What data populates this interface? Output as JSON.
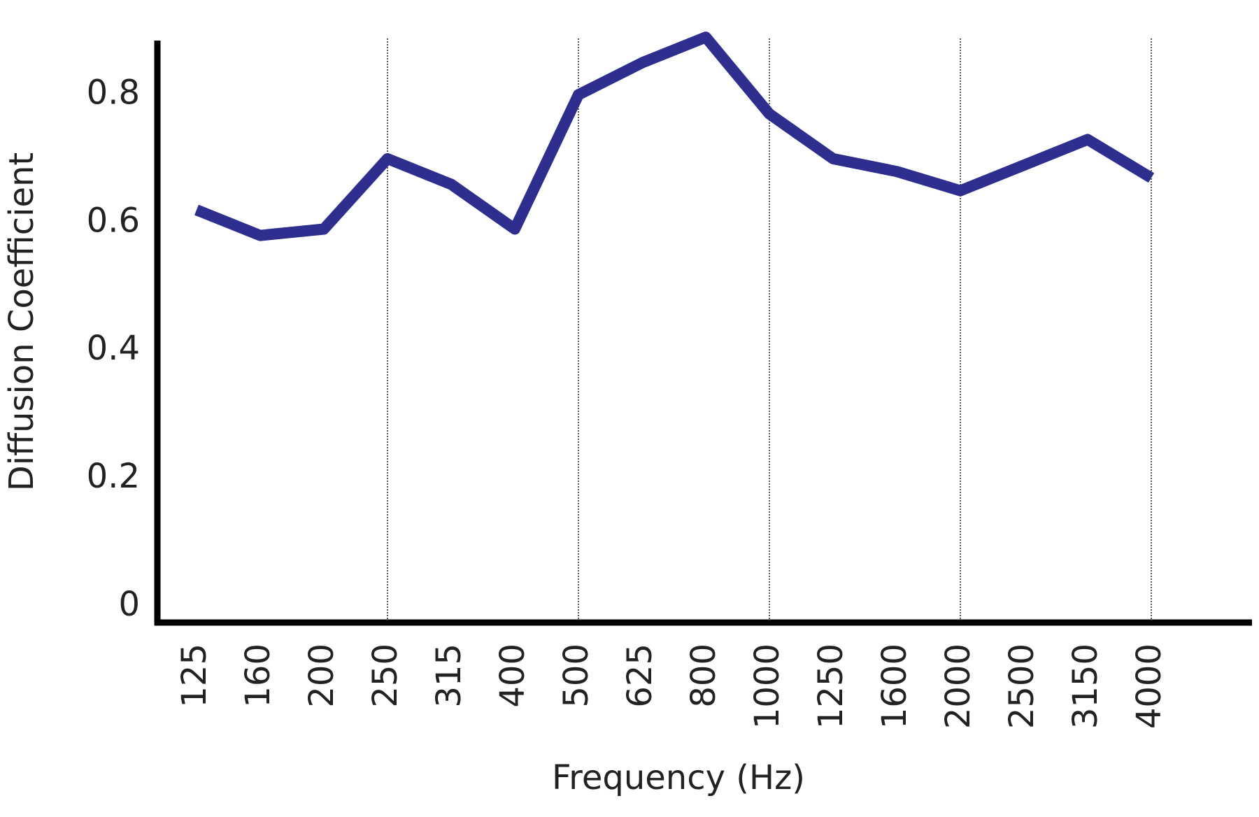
{
  "chart_data": {
    "type": "line",
    "x_label": "Frequency (Hz)",
    "y_label": "Diffusion Coefficient",
    "categories": [
      "125",
      "160",
      "200",
      "250",
      "315",
      "400",
      "500",
      "625",
      "800",
      "1000",
      "1250",
      "1600",
      "2000",
      "2500",
      "3150",
      "4000"
    ],
    "values": [
      0.62,
      0.58,
      0.59,
      0.7,
      0.66,
      0.59,
      0.8,
      0.85,
      0.89,
      0.77,
      0.7,
      0.68,
      0.65,
      0.69,
      0.73,
      0.67
    ],
    "color": "#2e2e8f",
    "ylim": [
      0,
      0.9
    ],
    "yticks": [
      0,
      0.2,
      0.4,
      0.6,
      0.8
    ]
  }
}
